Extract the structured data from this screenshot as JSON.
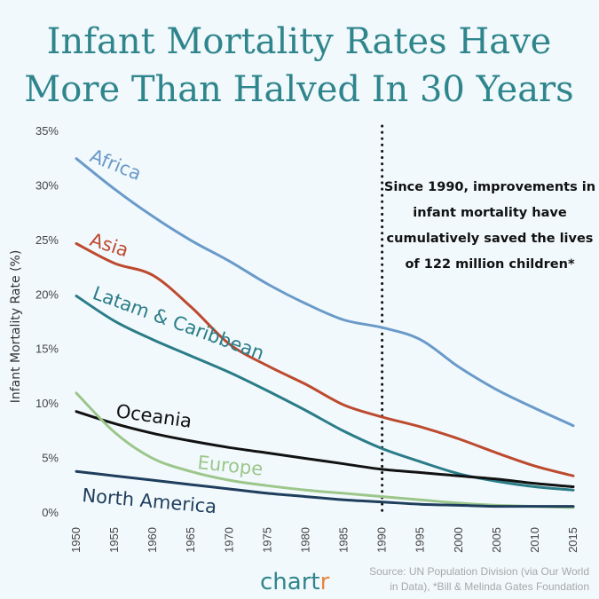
{
  "chart_data": {
    "type": "line",
    "title_lines": [
      "Infant Mortality Rates Have",
      "More Than Halved In 30 Years"
    ],
    "ylabel": "Infant Mortality Rate (%)",
    "xlabel": "",
    "ylim": [
      0,
      35
    ],
    "xlim": [
      1950,
      2015
    ],
    "yticks": [
      0,
      5,
      10,
      15,
      20,
      25,
      30,
      35
    ],
    "ytick_labels": [
      "0%",
      "5%",
      "10%",
      "15%",
      "20%",
      "25%",
      "30%",
      "35%"
    ],
    "xticks": [
      "1950",
      "1955",
      "1960",
      "1965",
      "1970",
      "1975",
      "1980",
      "1985",
      "1990",
      "1995",
      "2000",
      "2005",
      "2010",
      "2015"
    ],
    "grid": false,
    "vline": {
      "x": 1990,
      "style": "dotted"
    },
    "annotation": [
      "Since 1990, improvements in",
      "infant mortality have",
      "cumulatively saved the lives",
      "of 122 million children*"
    ],
    "x": [
      1950,
      1955,
      1960,
      1965,
      1970,
      1975,
      1980,
      1985,
      1990,
      1995,
      2000,
      2005,
      2010,
      2015
    ],
    "series": [
      {
        "name": "Africa",
        "label": "Africa",
        "color": "#6a9ac9",
        "values": [
          32.5,
          29.7,
          27.2,
          25.0,
          23.1,
          21.0,
          19.2,
          17.7,
          17.0,
          15.9,
          13.4,
          11.3,
          9.6,
          8.0
        ]
      },
      {
        "name": "Asia",
        "label": "Asia",
        "color": "#bd4a2f",
        "values": [
          24.7,
          22.9,
          21.8,
          18.9,
          15.5,
          13.5,
          11.8,
          9.9,
          8.8,
          7.9,
          6.8,
          5.5,
          4.3,
          3.4
        ]
      },
      {
        "name": "Latam & Caribbean",
        "label": "Latam & Caribbean",
        "color": "#2a7c87",
        "values": [
          19.9,
          17.6,
          15.9,
          14.4,
          12.9,
          11.2,
          9.4,
          7.5,
          5.9,
          4.7,
          3.6,
          2.9,
          2.4,
          2.1
        ]
      },
      {
        "name": "Oceania",
        "label": "Oceania",
        "color": "#111111",
        "values": [
          9.3,
          8.2,
          7.3,
          6.6,
          6.0,
          5.5,
          5.0,
          4.5,
          4.0,
          3.7,
          3.4,
          3.1,
          2.7,
          2.4
        ]
      },
      {
        "name": "Europe",
        "label": "Europe",
        "color": "#9cc68a",
        "values": [
          11.0,
          7.4,
          5.0,
          3.8,
          3.0,
          2.5,
          2.1,
          1.8,
          1.5,
          1.2,
          0.9,
          0.7,
          0.6,
          0.5
        ]
      },
      {
        "name": "North America",
        "label": "North America",
        "color": "#1f3d5c",
        "values": [
          3.8,
          3.4,
          3.0,
          2.6,
          2.2,
          1.8,
          1.5,
          1.2,
          1.0,
          0.8,
          0.7,
          0.6,
          0.6,
          0.6
        ]
      }
    ]
  },
  "footer": {
    "brand_main": "chart",
    "brand_accent": "r",
    "source_lines": [
      "Source: UN Population Division (via Our World",
      "in Data), *Bill & Melinda Gates Foundation"
    ]
  }
}
